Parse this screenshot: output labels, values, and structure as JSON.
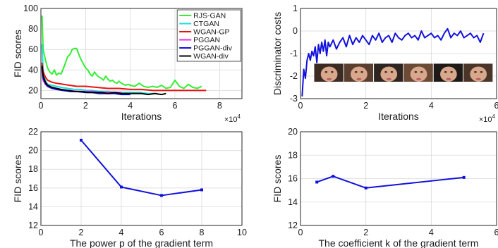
{
  "chart_data": [
    {
      "id": "fid-vs-iterations",
      "type": "line",
      "xlabel": "Iterations",
      "ylabel": "FID scores",
      "x_multiplier": "×10^4",
      "xlim": [
        0,
        9
      ],
      "ylim": [
        12,
        100
      ],
      "xticks": [
        "0",
        "2",
        "4",
        "6",
        "8"
      ],
      "yticks": [
        "20",
        "40",
        "60",
        "80",
        "100"
      ],
      "grid": true,
      "legend_position": "top-right",
      "series": [
        {
          "name": "RJS-GAN",
          "color": "#33ee33",
          "x": [
            0.05,
            0.1,
            0.2,
            0.3,
            0.4,
            0.5,
            0.6,
            0.7,
            0.8,
            0.9,
            1.0,
            1.1,
            1.2,
            1.3,
            1.4,
            1.5,
            1.6,
            1.7,
            1.8,
            1.9,
            2.0,
            2.1,
            2.2,
            2.3,
            2.4,
            2.5,
            2.6,
            2.7,
            2.8,
            2.9,
            3.0,
            3.1,
            3.2,
            3.3,
            3.4,
            3.5,
            3.6,
            3.7,
            3.8,
            3.9,
            4.0,
            4.2,
            4.4,
            4.6,
            4.8,
            5.0,
            5.2,
            5.4,
            5.6,
            5.8,
            6.0,
            6.2,
            6.4,
            6.6,
            6.8,
            7.0,
            7.2
          ],
          "y": [
            93,
            60,
            50,
            42,
            38,
            36,
            40,
            35,
            37,
            36,
            41,
            47,
            53,
            55,
            60,
            61,
            61,
            55,
            50,
            46,
            42,
            40,
            36,
            34,
            38,
            35,
            33,
            32,
            30,
            34,
            31,
            29,
            30,
            28,
            27,
            29,
            27,
            26,
            25,
            26,
            25,
            24,
            27,
            24,
            23,
            24,
            23,
            25,
            22,
            23,
            30,
            24,
            22,
            26,
            23,
            22,
            24
          ]
        },
        {
          "name": "CTGAN",
          "color": "#22dddd",
          "x": [
            0.05,
            0.1,
            0.2,
            0.3,
            0.5,
            0.7,
            0.9,
            1.2,
            1.5,
            1.8,
            2.0,
            2.3,
            2.6,
            3.0,
            3.3,
            3.6,
            4.0,
            4.4,
            4.8,
            5.2
          ],
          "y": [
            65,
            40,
            30,
            26,
            25,
            24,
            23,
            22,
            21,
            21,
            20,
            20,
            19,
            19,
            18,
            18,
            18,
            18,
            17,
            17
          ]
        },
        {
          "name": "WGAN-GP",
          "color": "#ee1111",
          "x": [
            0.05,
            0.1,
            0.2,
            0.3,
            0.5,
            0.7,
            1.0,
            1.3,
            1.6,
            2.0,
            2.5,
            3.0,
            3.5,
            4.0,
            4.5,
            5.0,
            5.5,
            6.0,
            6.5,
            7.0,
            7.4
          ],
          "y": [
            47,
            38,
            33,
            30,
            28,
            27,
            26,
            25,
            24,
            24,
            23,
            22,
            22,
            21,
            21,
            20,
            20,
            20,
            20,
            20,
            20
          ]
        },
        {
          "name": "PGGAN",
          "color": "#ee22ee",
          "x": [
            0.05,
            0.1,
            0.2,
            0.3,
            0.5,
            0.7,
            1.0,
            1.3,
            1.6,
            2.0,
            2.3,
            2.6,
            3.0,
            3.3,
            3.6
          ],
          "y": [
            40,
            30,
            26,
            24,
            22,
            21,
            20,
            20,
            19,
            19,
            19,
            18,
            18,
            18,
            18
          ]
        },
        {
          "name": "PGGAN-div",
          "color": "#1111dd",
          "x": [
            0.05,
            0.1,
            0.2,
            0.3,
            0.5,
            0.7,
            1.0,
            1.3,
            1.6,
            2.0,
            2.3,
            2.6,
            3.0,
            3.3,
            3.6,
            4.0
          ],
          "y": [
            42,
            32,
            27,
            24,
            22,
            21,
            20,
            19,
            19,
            18,
            18,
            17,
            17,
            17,
            16,
            16
          ]
        },
        {
          "name": "WGAN-div",
          "color": "#000000",
          "x": [
            0.05,
            0.1,
            0.2,
            0.3,
            0.5,
            0.7,
            0.9,
            1.2,
            1.5,
            1.8,
            2.1,
            2.4,
            2.7,
            3.0,
            3.3,
            3.6,
            3.9,
            4.2,
            4.5,
            4.8,
            5.1,
            5.4,
            5.6
          ],
          "y": [
            44,
            34,
            28,
            25,
            23,
            22,
            21,
            20,
            19,
            19,
            18,
            18,
            18,
            17,
            18,
            17,
            17,
            17,
            17,
            16,
            17,
            16,
            17
          ]
        }
      ]
    },
    {
      "id": "discriminator-costs",
      "type": "line",
      "xlabel": "Iterations",
      "ylabel": "Discriminator costs",
      "x_multiplier": "×10^4",
      "xlim": [
        0,
        6
      ],
      "ylim": [
        -3,
        1
      ],
      "xticks": [
        "0",
        "2",
        "4",
        "6"
      ],
      "yticks": [
        "-3",
        "-2",
        "-1",
        "0",
        "1"
      ],
      "grid": true,
      "inset": "strip of six generated face images",
      "series": [
        {
          "name": "",
          "color": "#1111dd",
          "x": [
            0.05,
            0.1,
            0.15,
            0.2,
            0.25,
            0.3,
            0.35,
            0.4,
            0.45,
            0.5,
            0.55,
            0.6,
            0.65,
            0.7,
            0.75,
            0.8,
            0.85,
            0.9,
            1.0,
            1.1,
            1.2,
            1.3,
            1.4,
            1.5,
            1.6,
            1.7,
            1.8,
            1.9,
            2.0,
            2.1,
            2.2,
            2.3,
            2.4,
            2.5,
            2.6,
            2.7,
            2.8,
            2.9,
            3.0,
            3.1,
            3.2,
            3.3,
            3.4,
            3.5,
            3.6,
            3.7,
            3.8,
            3.9,
            4.0,
            4.1,
            4.2,
            4.3,
            4.4,
            4.5,
            4.6,
            4.7,
            4.8,
            4.9,
            5.0,
            5.1,
            5.2,
            5.3,
            5.4,
            5.5,
            5.6
          ],
          "y": [
            -2.9,
            -1.7,
            -2.1,
            -1.3,
            -1.0,
            -1.3,
            -0.9,
            -1.1,
            -0.7,
            -1.4,
            -0.6,
            -1.0,
            -0.5,
            -0.9,
            -0.4,
            -1.1,
            -0.5,
            -0.7,
            -0.4,
            -0.8,
            -0.5,
            -0.3,
            -0.7,
            -0.2,
            -0.6,
            -0.3,
            -0.5,
            -0.2,
            -0.4,
            -0.6,
            -0.2,
            -0.4,
            -0.1,
            -0.5,
            -0.3,
            -0.2,
            -0.5,
            -0.1,
            -0.3,
            -0.4,
            -0.2,
            -0.1,
            -0.3,
            -0.2,
            -0.4,
            0.0,
            -0.3,
            -0.2,
            -0.1,
            -0.3,
            -0.2,
            -0.4,
            -0.1,
            0.1,
            -0.3,
            -0.1,
            -0.2,
            0.0,
            -0.3,
            -0.2,
            -0.1,
            -0.3,
            -0.2,
            -0.5,
            -0.1
          ]
        }
      ]
    },
    {
      "id": "fid-vs-power-p",
      "type": "line",
      "xlabel": "The power p of the gradient term",
      "ylabel": "FID scores",
      "xlim": [
        0,
        10
      ],
      "ylim": [
        12,
        22
      ],
      "xticks": [
        "0",
        "2",
        "4",
        "6",
        "8",
        "10"
      ],
      "yticks": [
        "12",
        "14",
        "16",
        "18",
        "20",
        "22"
      ],
      "grid": true,
      "series": [
        {
          "name": "",
          "color": "#1111dd",
          "x": [
            2,
            4,
            6,
            8
          ],
          "y": [
            21.1,
            16.1,
            15.2,
            15.8
          ]
        }
      ]
    },
    {
      "id": "fid-vs-coefficient-k",
      "type": "line",
      "xlabel": "The coefficient k of the gradient term",
      "ylabel": "FID scores",
      "xlim": [
        0,
        6
      ],
      "ylim": [
        12,
        20
      ],
      "xticks": [
        "0",
        "2",
        "4",
        "6"
      ],
      "yticks": [
        "12",
        "14",
        "16",
        "18",
        "20"
      ],
      "grid": true,
      "series": [
        {
          "name": "",
          "color": "#1111dd",
          "x": [
            0.5,
            1,
            2,
            5
          ],
          "y": [
            15.7,
            16.2,
            15.2,
            16.1
          ]
        }
      ]
    }
  ]
}
